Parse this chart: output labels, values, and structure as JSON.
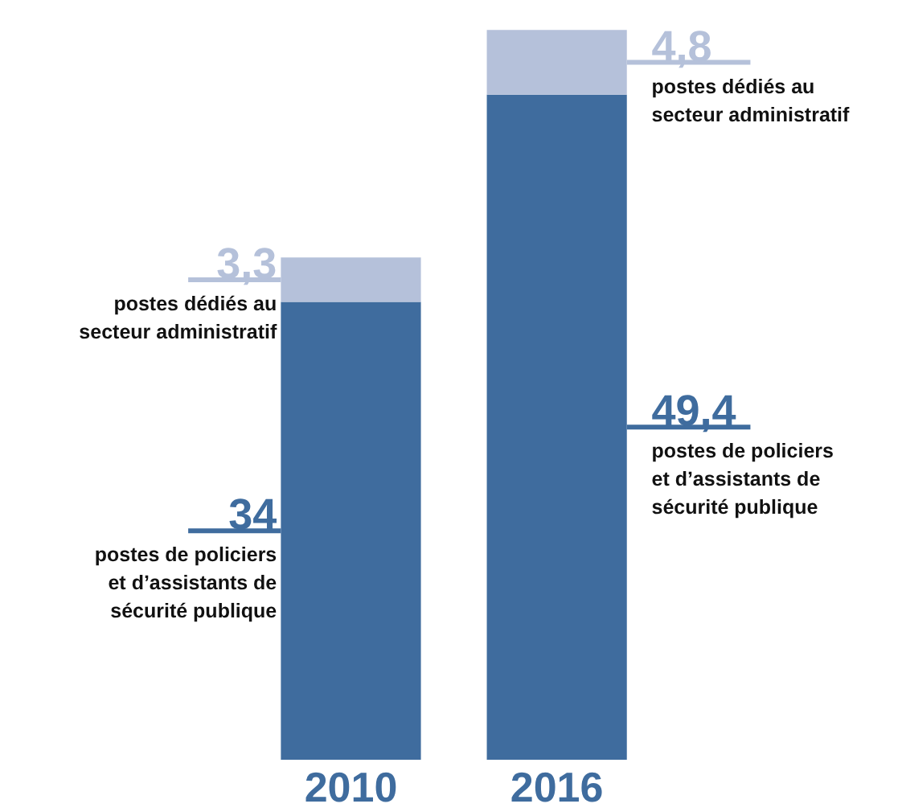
{
  "chart_data": {
    "type": "bar",
    "stacked": true,
    "categories": [
      "2010",
      "2016"
    ],
    "series": [
      {
        "color": "#3f6c9e",
        "values": [
          34,
          49.4
        ],
        "value_labels": [
          "34",
          "49,4"
        ]
      },
      {
        "color": "#b5c1da",
        "values": [
          3.3,
          4.8
        ],
        "value_labels": [
          "3,3",
          "4,8"
        ]
      }
    ],
    "annotations": [
      "postes de policiers et d’assistants de sécurité publique",
      "postes dédiés au secteur administratif",
      "postes de policiers et d’assistants de sécurité publique",
      "postes dédiés au secteur administratif"
    ],
    "grid": false,
    "legend": false
  }
}
